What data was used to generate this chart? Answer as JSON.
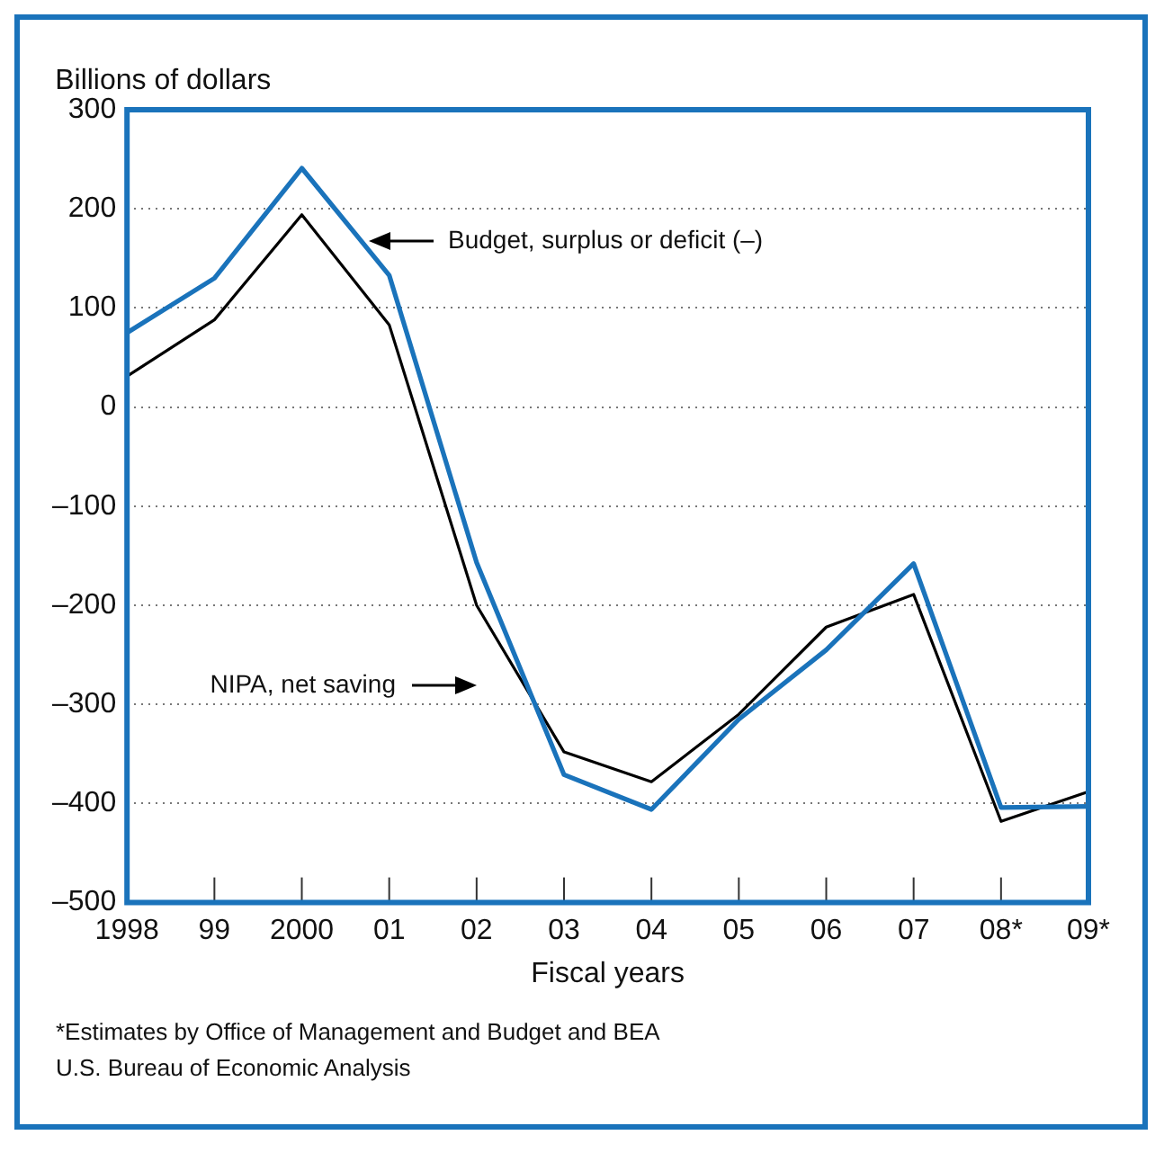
{
  "chart_data": {
    "type": "line",
    "ylabel": "Billions of dollars",
    "xlabel": "Fiscal years",
    "categories": [
      "1998",
      "99",
      "2000",
      "01",
      "02",
      "03",
      "04",
      "05",
      "06",
      "07",
      "08*",
      "09*"
    ],
    "series": [
      {
        "color": "#1a73bb",
        "values": [
          75,
          130,
          241,
          133,
          -157,
          -371,
          -406,
          -315,
          -245,
          -158,
          -404,
          -403
        ]
      },
      {
        "color": "#000000",
        "values": [
          31,
          88,
          194,
          83,
          -200,
          -348,
          -378,
          -310,
          -222,
          -189,
          -418,
          -388
        ]
      }
    ],
    "ylim": [
      -500,
      300
    ],
    "yticks": [
      {
        "value": -500,
        "label": "–500"
      },
      {
        "value": -400,
        "label": "–400"
      },
      {
        "value": -300,
        "label": "–300"
      },
      {
        "value": -200,
        "label": "–200"
      },
      {
        "value": -100,
        "label": "–100"
      },
      0,
      100,
      200,
      300
    ],
    "grid": "y",
    "legend": false,
    "marker": "none",
    "line_style": "solid",
    "annotations": [
      "Budget, surplus or deficit (–)",
      "NIPA, net saving",
      "*Estimates by Office of Management and Budget and BEA",
      "U.S. Bureau of Economic Analysis"
    ]
  }
}
